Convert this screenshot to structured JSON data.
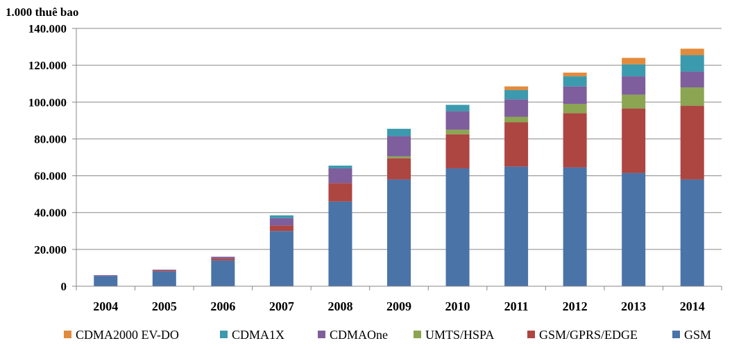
{
  "chart_data": {
    "type": "bar",
    "stacked": true,
    "ylabel": "1.000 thuê bao",
    "ylim": [
      0,
      140000
    ],
    "yticks": [
      0,
      20000,
      40000,
      60000,
      80000,
      100000,
      120000,
      140000
    ],
    "ytick_labels": [
      "0",
      "20.000",
      "40.000",
      "60.000",
      "80.000",
      "100.000",
      "120.000",
      "140.000"
    ],
    "grid": true,
    "legend_position": "bottom",
    "categories": [
      "2004",
      "2005",
      "2006",
      "2007",
      "2008",
      "2009",
      "2010",
      "2011",
      "2012",
      "2013",
      "2014"
    ],
    "series": [
      {
        "name": "GSM",
        "color": "#4a73a8",
        "values": [
          5500,
          8000,
          14000,
          30000,
          46000,
          58000,
          64000,
          65000,
          64500,
          61500,
          58000
        ]
      },
      {
        "name": "GSM/GPRS/EDGE",
        "color": "#ad4541",
        "values": [
          0,
          500,
          1000,
          3000,
          10000,
          11500,
          18500,
          24000,
          29500,
          35000,
          40000
        ]
      },
      {
        "name": "UMTS/HSPA",
        "color": "#8ba553",
        "values": [
          0,
          0,
          0,
          0,
          0,
          1000,
          2500,
          3000,
          5000,
          7500,
          10000
        ]
      },
      {
        "name": "CDMAOne",
        "color": "#7e5e9c",
        "values": [
          500,
          500,
          1000,
          4000,
          8000,
          11000,
          10000,
          9500,
          9500,
          10000,
          8500
        ]
      },
      {
        "name": "CDMA1X",
        "color": "#3c9aae",
        "values": [
          0,
          0,
          0,
          1500,
          1500,
          4000,
          3500,
          5000,
          5500,
          6500,
          9000
        ]
      },
      {
        "name": "CDMA2000 EV-DO",
        "color": "#e28b3d",
        "values": [
          0,
          0,
          0,
          0,
          0,
          0,
          0,
          2000,
          2000,
          3500,
          3500
        ]
      }
    ],
    "legend_order": [
      "CDMA2000 EV-DO",
      "CDMA1X",
      "CDMAOne",
      "UMTS/HSPA",
      "GSM/GPRS/EDGE",
      "GSM"
    ]
  }
}
